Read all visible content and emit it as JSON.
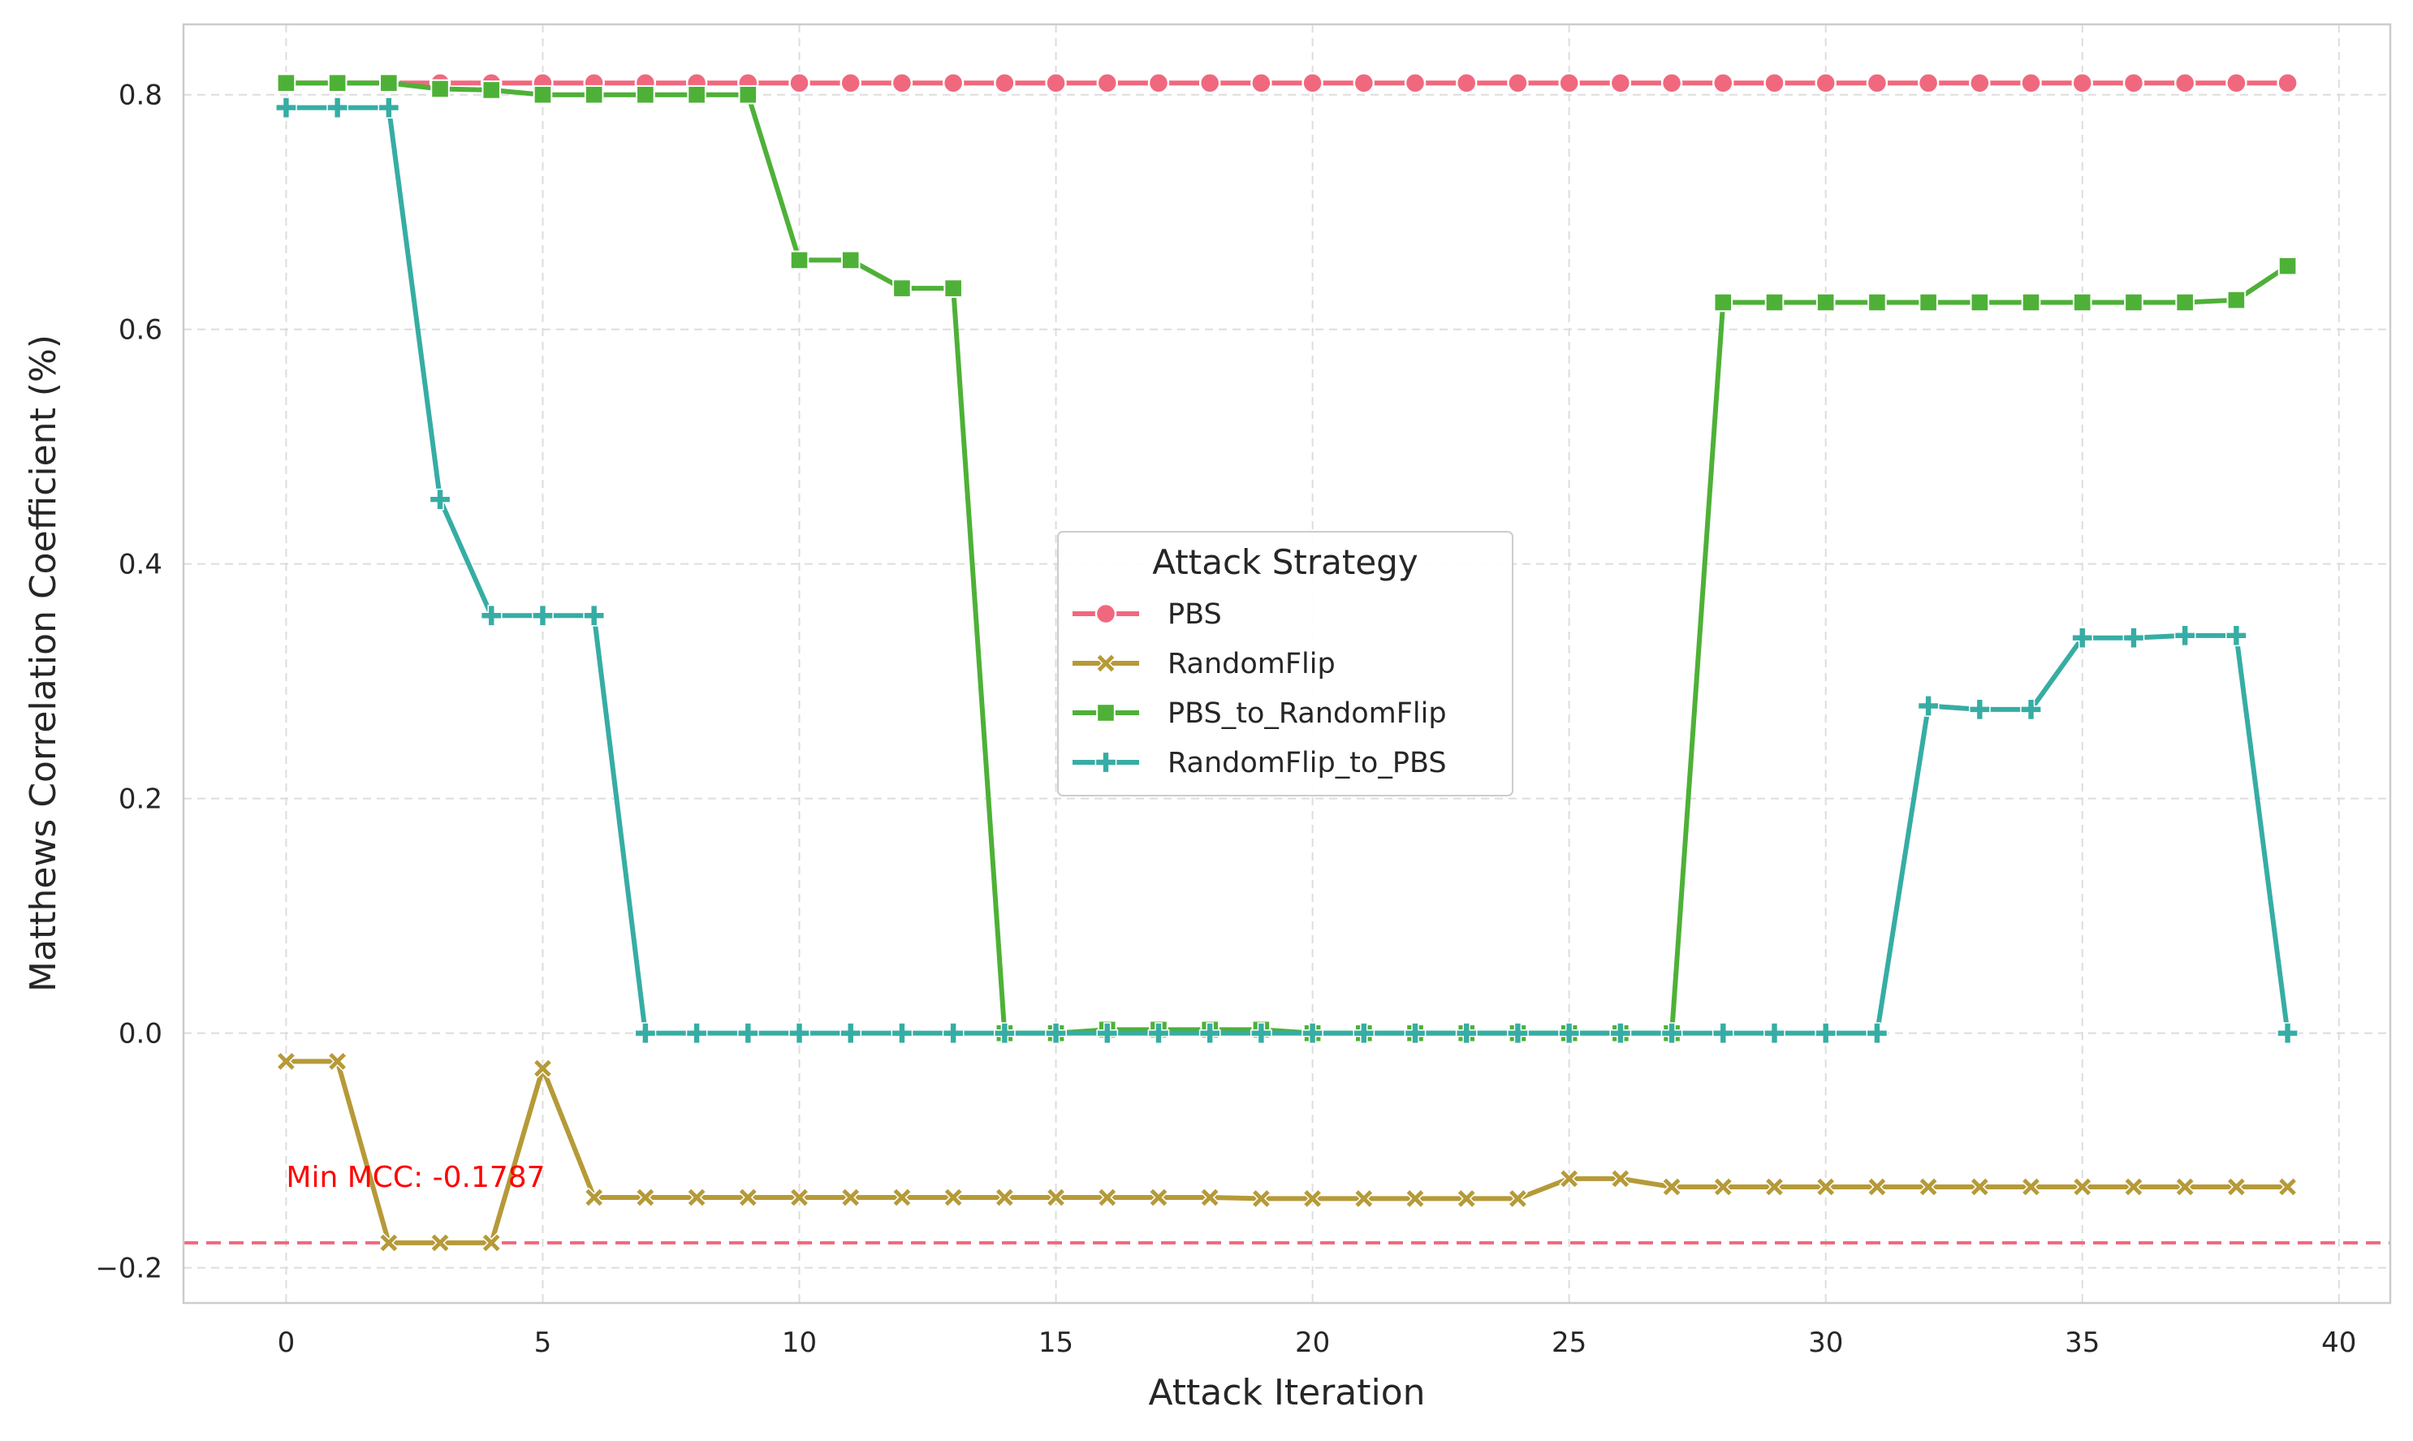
{
  "chart_data": {
    "type": "line",
    "title": "",
    "xlabel": "Attack Iteration",
    "ylabel": "Matthews Correlation Coefficient (%)",
    "xlim": [
      -2,
      41
    ],
    "ylim": [
      -0.23,
      0.86
    ],
    "xticks": [
      0,
      5,
      10,
      15,
      20,
      25,
      30,
      35,
      40
    ],
    "yticks": [
      -0.2,
      0.0,
      0.2,
      0.4,
      0.6,
      0.8
    ],
    "ytick_labels": [
      "−0.2",
      "0.0",
      "0.2",
      "0.4",
      "0.6",
      "0.8"
    ],
    "grid": true,
    "legend": {
      "title": "Attack Strategy",
      "placement": "center"
    },
    "x": [
      0,
      1,
      2,
      3,
      4,
      5,
      6,
      7,
      8,
      9,
      10,
      11,
      12,
      13,
      14,
      15,
      16,
      17,
      18,
      19,
      20,
      21,
      22,
      23,
      24,
      25,
      26,
      27,
      28,
      29,
      30,
      31,
      32,
      33,
      34,
      35,
      36,
      37,
      38,
      39
    ],
    "series": [
      {
        "name": "PBS",
        "color": "#f0687e",
        "marker": "circle",
        "values": [
          0.81,
          0.81,
          0.81,
          0.81,
          0.81,
          0.81,
          0.81,
          0.81,
          0.81,
          0.81,
          0.81,
          0.81,
          0.81,
          0.81,
          0.81,
          0.81,
          0.81,
          0.81,
          0.81,
          0.81,
          0.81,
          0.81,
          0.81,
          0.81,
          0.81,
          0.81,
          0.81,
          0.81,
          0.81,
          0.81,
          0.81,
          0.81,
          0.81,
          0.81,
          0.81,
          0.81,
          0.81,
          0.81,
          0.81,
          0.81
        ]
      },
      {
        "name": "RandomFlip",
        "color": "#b69a38",
        "marker": "x",
        "values": [
          -0.024,
          -0.024,
          -0.1787,
          -0.1787,
          -0.1787,
          -0.03,
          -0.14,
          -0.14,
          -0.14,
          -0.14,
          -0.14,
          -0.14,
          -0.14,
          -0.14,
          -0.14,
          -0.14,
          -0.14,
          -0.14,
          -0.14,
          -0.141,
          -0.141,
          -0.141,
          -0.141,
          -0.141,
          -0.141,
          -0.124,
          -0.124,
          -0.131,
          -0.131,
          -0.131,
          -0.131,
          -0.131,
          -0.131,
          -0.131,
          -0.131,
          -0.131,
          -0.131,
          -0.131,
          -0.131,
          -0.131
        ]
      },
      {
        "name": "PBS_to_RandomFlip",
        "color": "#4eb137",
        "marker": "square",
        "values": [
          0.81,
          0.81,
          0.81,
          0.805,
          0.804,
          0.8,
          0.8,
          0.8,
          0.8,
          0.8,
          0.659,
          0.659,
          0.635,
          0.635,
          0.0,
          0.0,
          0.003,
          0.003,
          0.003,
          0.003,
          0.0,
          0.0,
          0.0,
          0.0,
          0.0,
          0.0,
          0.0,
          0.0,
          0.623,
          0.623,
          0.623,
          0.623,
          0.623,
          0.623,
          0.623,
          0.623,
          0.623,
          0.623,
          0.625,
          0.654
        ]
      },
      {
        "name": "RandomFlip_to_PBS",
        "color": "#36ada4",
        "marker": "plus",
        "values": [
          0.789,
          0.789,
          0.789,
          0.455,
          0.356,
          0.356,
          0.356,
          0.0,
          0.0,
          0.0,
          0.0,
          0.0,
          0.0,
          0.0,
          0.0,
          0.0,
          0.0,
          0.0,
          0.0,
          0.0,
          0.0,
          0.0,
          0.0,
          0.0,
          0.0,
          0.0,
          0.0,
          0.0,
          0.0,
          0.0,
          0.0,
          0.0,
          0.279,
          0.276,
          0.276,
          0.337,
          0.337,
          0.339,
          0.339,
          0.0
        ]
      }
    ],
    "reference_line": {
      "y": -0.1787,
      "color": "#f0687e",
      "style": "dashed"
    },
    "annotations": [
      {
        "text": "Min MCC: -0.1787",
        "x": 0,
        "y": -0.124,
        "color": "#ff0000"
      }
    ]
  }
}
